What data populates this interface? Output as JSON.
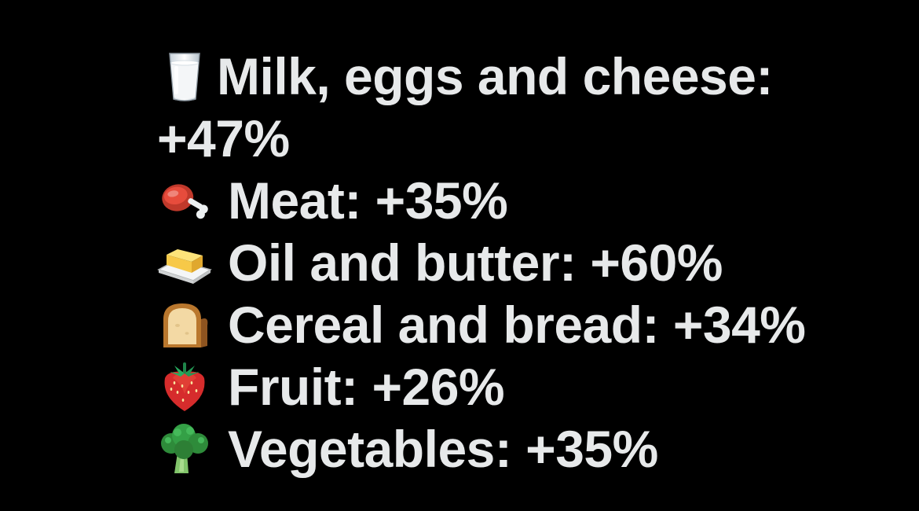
{
  "items": [
    {
      "icon": "milk-glass-icon",
      "text": "Milk, eggs and cheese:",
      "continuation": "+47%"
    },
    {
      "icon": "meat-on-bone-icon",
      "text": "Meat: +35%"
    },
    {
      "icon": "butter-icon",
      "text": "Oil and butter: +60%"
    },
    {
      "icon": "bread-icon",
      "text": "Cereal and bread: +34%"
    },
    {
      "icon": "strawberry-icon",
      "text": "Fruit: +26%"
    },
    {
      "icon": "broccoli-icon",
      "text": "Vegetables: +35%"
    }
  ],
  "colors": {
    "background": "#000000",
    "text": "#e7e9ea"
  }
}
